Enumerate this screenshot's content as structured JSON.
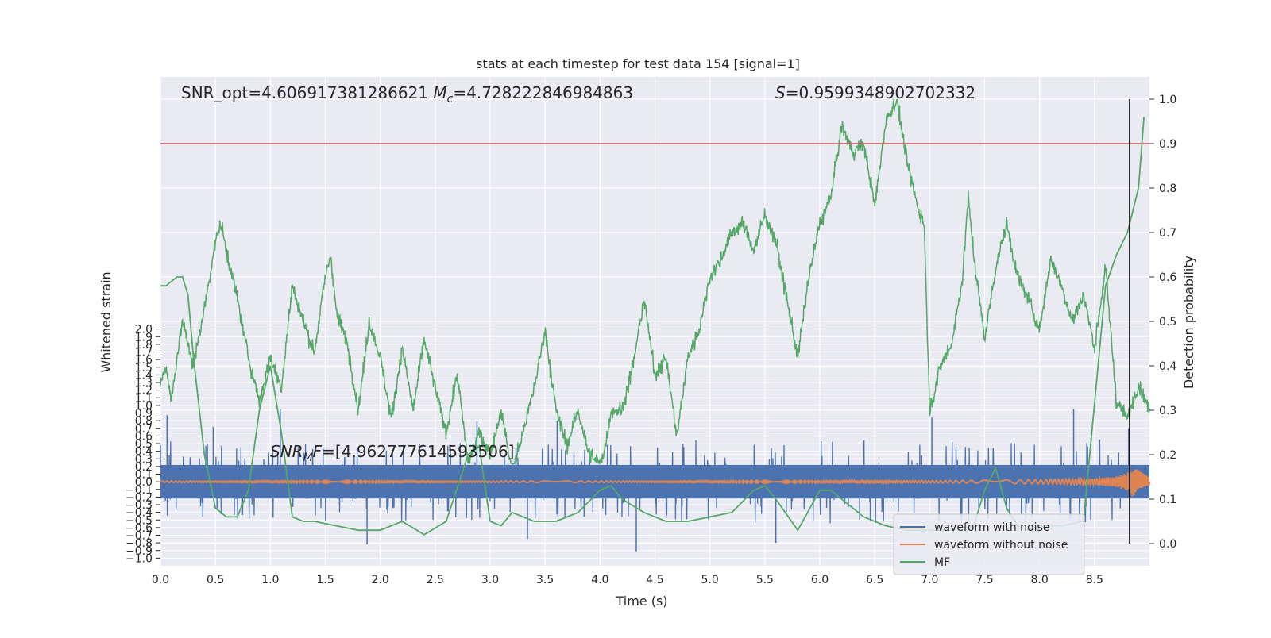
{
  "title": "stats at each timestep for test data 154 [signal=1]",
  "annotations": {
    "snr_opt_prefix": "SNR_opt=4.606917381286621 ",
    "mc_symbol": "M",
    "mc_sub": "c",
    "mc_value": "=4.728222846984863",
    "s_symbol": "S",
    "s_value": "=0.9599348902702332",
    "snrmf_symbol": "SNR",
    "snrmf_sub": "M",
    "snrmf_tail": "F",
    "snrmf_value": "=[4.962777614593506]"
  },
  "colors": {
    "background": "#eaeaf2",
    "grid": "#ffffff",
    "noisy": "#4c72b0",
    "clean": "#dd8452",
    "mf": "#55a868",
    "threshold": "#c44e52",
    "marker": "#000000"
  },
  "legend": {
    "placement": "lower right",
    "items": [
      {
        "label": "waveform with noise",
        "color": "#4c72b0"
      },
      {
        "label": "waveform without noise",
        "color": "#dd8452"
      },
      {
        "label": "MF",
        "color": "#55a868"
      }
    ]
  },
  "chart_data": {
    "type": "line",
    "title": "stats at each timestep for test data 154 [signal=1]",
    "xlabel": "Time (s)",
    "ylabel_left": "Whitened strain",
    "ylabel_right": "Detection probability",
    "xlim": [
      0,
      9.0
    ],
    "ylim_left": [
      -1.1,
      5.3
    ],
    "ylim_right": [
      -0.05,
      1.05
    ],
    "grid": true,
    "x_ticks": [
      "0.0",
      "0.5",
      "1.0",
      "1.5",
      "2.0",
      "2.5",
      "3.0",
      "3.5",
      "4.0",
      "4.5",
      "5.0",
      "5.5",
      "6.0",
      "6.5",
      "7.0",
      "7.5",
      "8.0",
      "8.5"
    ],
    "left_ticks": [
      "-1.0",
      "-0.9",
      "-0.8",
      "-0.7",
      "-0.6",
      "-0.5",
      "-0.4",
      "-0.3",
      "-0.2",
      "-0.1",
      "0.0",
      "0.1",
      "0.2",
      "0.3",
      "0.4",
      "0.5",
      "0.6",
      "0.7",
      "0.8",
      "0.9",
      "1.0",
      "1.1",
      "1.2",
      "1.3",
      "1.4",
      "1.5",
      "1.6",
      "1.7",
      "1.8",
      "1.9",
      "2.0"
    ],
    "right_ticks": [
      "0.0",
      "0.1",
      "0.2",
      "0.3",
      "0.4",
      "0.5",
      "0.6",
      "0.7",
      "0.8",
      "0.9",
      "1.0"
    ],
    "threshold": 0.9,
    "marker_x": 8.82,
    "detection_probability": {
      "name": "",
      "x": [
        0.0,
        0.05,
        0.1,
        0.15,
        0.2,
        0.3,
        0.4,
        0.5,
        0.55,
        0.6,
        0.7,
        0.8,
        0.9,
        1.0,
        1.1,
        1.2,
        1.3,
        1.4,
        1.5,
        1.55,
        1.6,
        1.7,
        1.8,
        1.9,
        2.0,
        2.1,
        2.2,
        2.3,
        2.4,
        2.5,
        2.6,
        2.7,
        2.8,
        2.9,
        3.0,
        3.1,
        3.2,
        3.3,
        3.4,
        3.5,
        3.6,
        3.7,
        3.8,
        3.9,
        4.0,
        4.05,
        4.1,
        4.2,
        4.3,
        4.4,
        4.5,
        4.6,
        4.7,
        4.8,
        4.9,
        5.0,
        5.1,
        5.2,
        5.3,
        5.4,
        5.5,
        5.6,
        5.7,
        5.8,
        5.9,
        6.0,
        6.1,
        6.2,
        6.3,
        6.4,
        6.5,
        6.6,
        6.7,
        6.8,
        6.9,
        6.95,
        7.0,
        7.1,
        7.2,
        7.3,
        7.35,
        7.4,
        7.5,
        7.6,
        7.7,
        7.8,
        7.9,
        8.0,
        8.1,
        8.2,
        8.3,
        8.4,
        8.5,
        8.6,
        8.7,
        8.8,
        8.9,
        9.0
      ],
      "y": [
        0.36,
        0.4,
        0.32,
        0.42,
        0.5,
        0.4,
        0.53,
        0.68,
        0.72,
        0.66,
        0.55,
        0.42,
        0.32,
        0.42,
        0.35,
        0.58,
        0.5,
        0.43,
        0.6,
        0.65,
        0.52,
        0.45,
        0.3,
        0.5,
        0.42,
        0.28,
        0.44,
        0.3,
        0.46,
        0.35,
        0.25,
        0.38,
        0.18,
        0.25,
        0.2,
        0.3,
        0.16,
        0.25,
        0.35,
        0.48,
        0.3,
        0.22,
        0.3,
        0.2,
        0.18,
        0.22,
        0.3,
        0.3,
        0.4,
        0.55,
        0.38,
        0.42,
        0.24,
        0.42,
        0.48,
        0.6,
        0.64,
        0.7,
        0.72,
        0.66,
        0.74,
        0.68,
        0.55,
        0.42,
        0.6,
        0.72,
        0.78,
        0.94,
        0.88,
        0.9,
        0.76,
        0.95,
        1.0,
        0.85,
        0.75,
        0.72,
        0.3,
        0.4,
        0.45,
        0.6,
        0.78,
        0.65,
        0.46,
        0.62,
        0.72,
        0.6,
        0.55,
        0.48,
        0.64,
        0.58,
        0.5,
        0.56,
        0.44,
        0.62,
        0.32,
        0.28,
        0.36,
        0.3
      ]
    },
    "matched_filter": {
      "name": "MF",
      "x": [
        0.0,
        0.05,
        0.1,
        0.15,
        0.2,
        0.25,
        0.3,
        0.4,
        0.5,
        0.6,
        0.7,
        0.8,
        0.9,
        1.0,
        1.1,
        1.2,
        1.3,
        1.4,
        1.6,
        1.8,
        2.0,
        2.2,
        2.4,
        2.6,
        2.8,
        2.9,
        3.0,
        3.1,
        3.2,
        3.4,
        3.6,
        3.8,
        4.0,
        4.1,
        4.2,
        4.4,
        4.6,
        4.8,
        5.0,
        5.2,
        5.4,
        5.5,
        5.6,
        5.8,
        6.0,
        6.1,
        6.2,
        6.4,
        6.6,
        6.8,
        7.0,
        7.2,
        7.4,
        7.5,
        7.6,
        7.7,
        7.8,
        7.9,
        8.0,
        8.2,
        8.4,
        8.6,
        8.7,
        8.8,
        8.9,
        8.95
      ],
      "y": [
        0.58,
        0.58,
        0.59,
        0.6,
        0.6,
        0.56,
        0.42,
        0.2,
        0.08,
        0.06,
        0.06,
        0.12,
        0.3,
        0.4,
        0.25,
        0.06,
        0.05,
        0.05,
        0.04,
        0.03,
        0.03,
        0.05,
        0.02,
        0.05,
        0.2,
        0.22,
        0.05,
        0.04,
        0.07,
        0.05,
        0.05,
        0.07,
        0.12,
        0.13,
        0.1,
        0.07,
        0.05,
        0.05,
        0.06,
        0.07,
        0.12,
        0.13,
        0.1,
        0.03,
        0.12,
        0.12,
        0.1,
        0.06,
        0.04,
        0.03,
        0.03,
        0.03,
        0.04,
        0.12,
        0.17,
        0.08,
        0.04,
        0.03,
        0.04,
        0.04,
        0.05,
        0.58,
        0.65,
        0.7,
        0.8,
        0.96
      ]
    },
    "waveform_without_noise": {
      "name": "waveform without noise",
      "x": [
        0.0,
        0.5,
        1.0,
        1.5,
        2.0,
        2.5,
        3.0,
        3.5,
        4.0,
        4.5,
        5.0,
        5.5,
        6.0,
        6.5,
        7.0,
        7.5,
        8.0,
        8.5,
        8.7,
        8.8,
        8.85,
        8.9,
        9.0
      ],
      "amplitude": [
        0.01,
        0.01,
        0.01,
        0.01,
        0.01,
        0.01,
        0.01,
        0.01,
        0.01,
        0.01,
        0.01,
        0.01,
        0.01,
        0.015,
        0.015,
        0.02,
        0.03,
        0.04,
        0.07,
        0.12,
        0.2,
        0.15,
        0.06
      ]
    },
    "waveform_with_noise": {
      "name": "waveform with noise",
      "x": [
        0.0,
        1.0,
        2.0,
        3.0,
        4.0,
        5.0,
        6.0,
        7.0,
        8.0,
        9.0
      ],
      "envelope_upper": [
        0.55,
        0.52,
        0.55,
        0.5,
        0.52,
        0.55,
        0.55,
        0.55,
        0.55,
        0.56
      ],
      "envelope_lower": [
        -0.6,
        -0.6,
        -0.65,
        -0.65,
        -0.75,
        -0.7,
        -0.7,
        -0.7,
        -0.75,
        -0.7
      ],
      "spikes": [
        {
          "x": 0.06,
          "y": 0.87
        },
        {
          "x": 0.48,
          "y": 0.72
        },
        {
          "x": 1.09,
          "y": 0.95
        },
        {
          "x": 2.88,
          "y": 0.79
        },
        {
          "x": 3.61,
          "y": 0.8
        },
        {
          "x": 7.02,
          "y": 0.84
        },
        {
          "x": 8.31,
          "y": 0.95
        },
        {
          "x": 8.81,
          "y": 0.7
        },
        {
          "x": 4.33,
          "y": -0.91
        },
        {
          "x": 3.34,
          "y": -0.75
        },
        {
          "x": 1.88,
          "y": -0.82
        },
        {
          "x": 5.6,
          "y": -0.8
        }
      ]
    }
  }
}
